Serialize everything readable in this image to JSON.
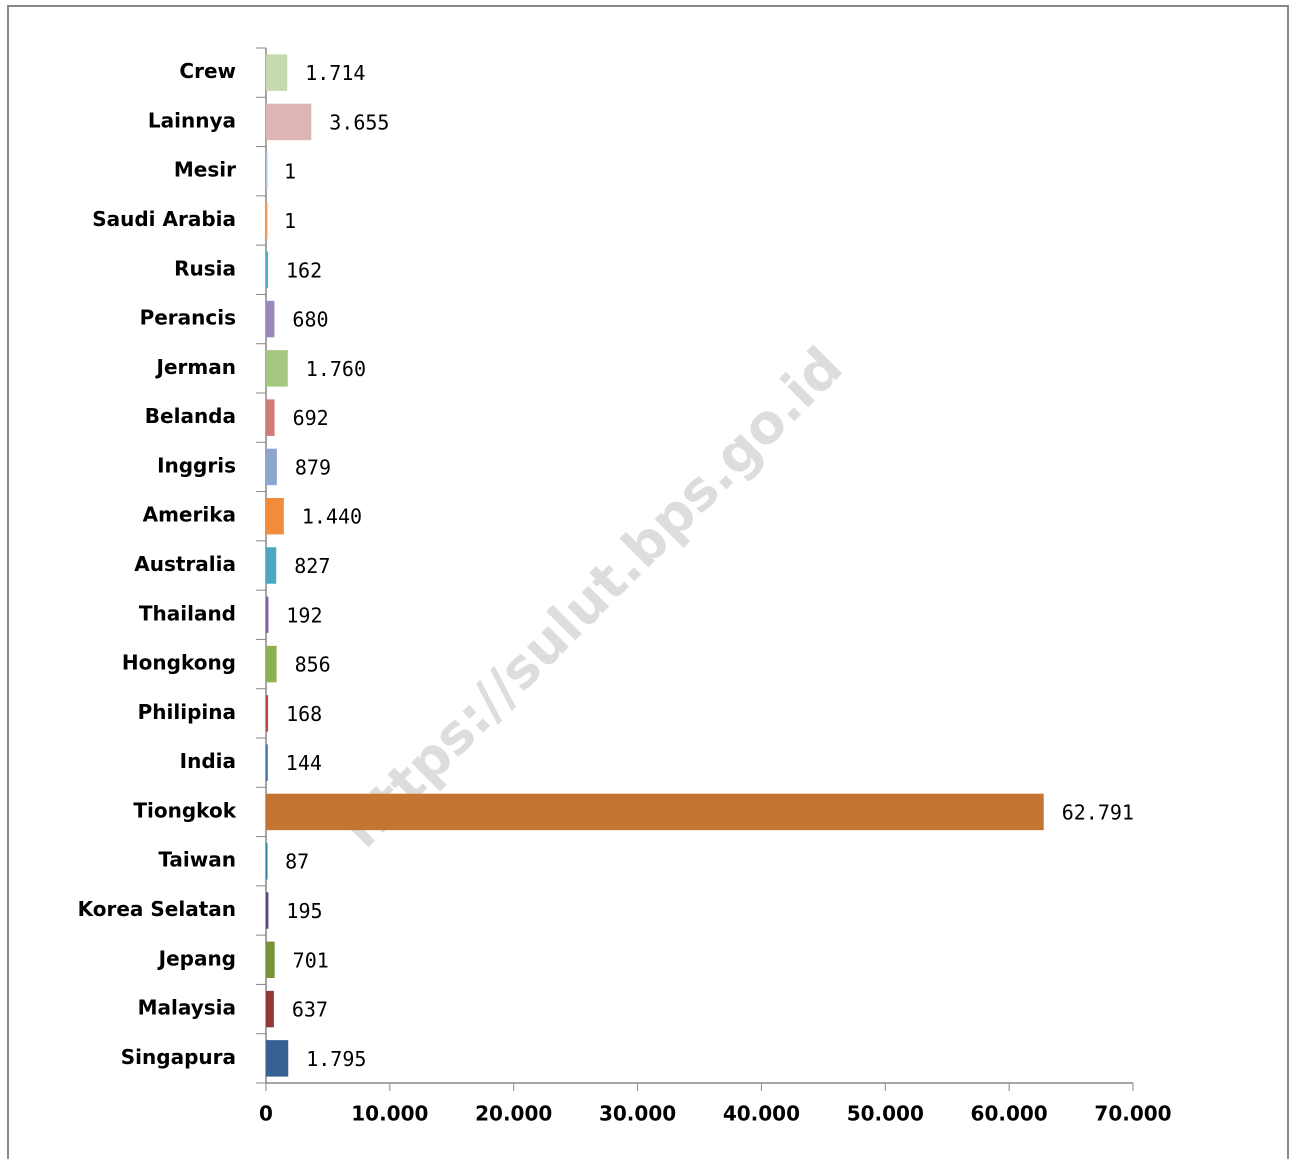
{
  "chart_data": {
    "type": "barh",
    "watermark": "https://sulut.bps.go.id",
    "categories": [
      "Crew",
      "Lainnya",
      "Mesir",
      "Saudi Arabia",
      "Rusia",
      "Perancis",
      "Jerman",
      "Belanda",
      "Inggris",
      "Amerika",
      "Australia",
      "Thailand",
      "Hongkong",
      "Philipina",
      "India",
      "Tiongkok",
      "Taiwan",
      "Korea Selatan",
      "Jepang",
      "Malaysia",
      "Singapura"
    ],
    "values": [
      1714,
      3655,
      1,
      1,
      162,
      680,
      1760,
      692,
      879,
      1440,
      827,
      192,
      856,
      168,
      144,
      62791,
      87,
      195,
      701,
      637,
      1795
    ],
    "value_labels": [
      "1.714",
      "3.655",
      "1",
      "1",
      "162",
      "680",
      "1.760",
      "692",
      "879",
      "1.440",
      "827",
      "192",
      "856",
      "168",
      "144",
      "62.791",
      "87",
      "195",
      "701",
      "637",
      "1.795"
    ],
    "colors": [
      "#c6d9b0",
      "#ddb5b5",
      "#b3c6e0",
      "#f0a060",
      "#4bacc6",
      "#9b87bb",
      "#a5c77f",
      "#cf7b79",
      "#8ea6cf",
      "#f18c3c",
      "#4ba7c0",
      "#7d60a0",
      "#8db050",
      "#b84a48",
      "#4472a8",
      "#c47532",
      "#31849b",
      "#5f497a",
      "#77933c",
      "#953735",
      "#366092"
    ],
    "xlim": [
      0,
      70000
    ],
    "xticks": [
      0,
      {
        "value": 10000,
        "label": "10.000"
      },
      {
        "value": 20000,
        "label": "20.000"
      },
      {
        "value": 30000,
        "label": "30.000"
      },
      {
        "value": 40000,
        "label": "40.000"
      },
      {
        "value": 50000,
        "label": "50.000"
      },
      {
        "value": 60000,
        "label": "60.000"
      },
      {
        "value": 70000,
        "label": "70.000"
      }
    ],
    "grid": false
  }
}
